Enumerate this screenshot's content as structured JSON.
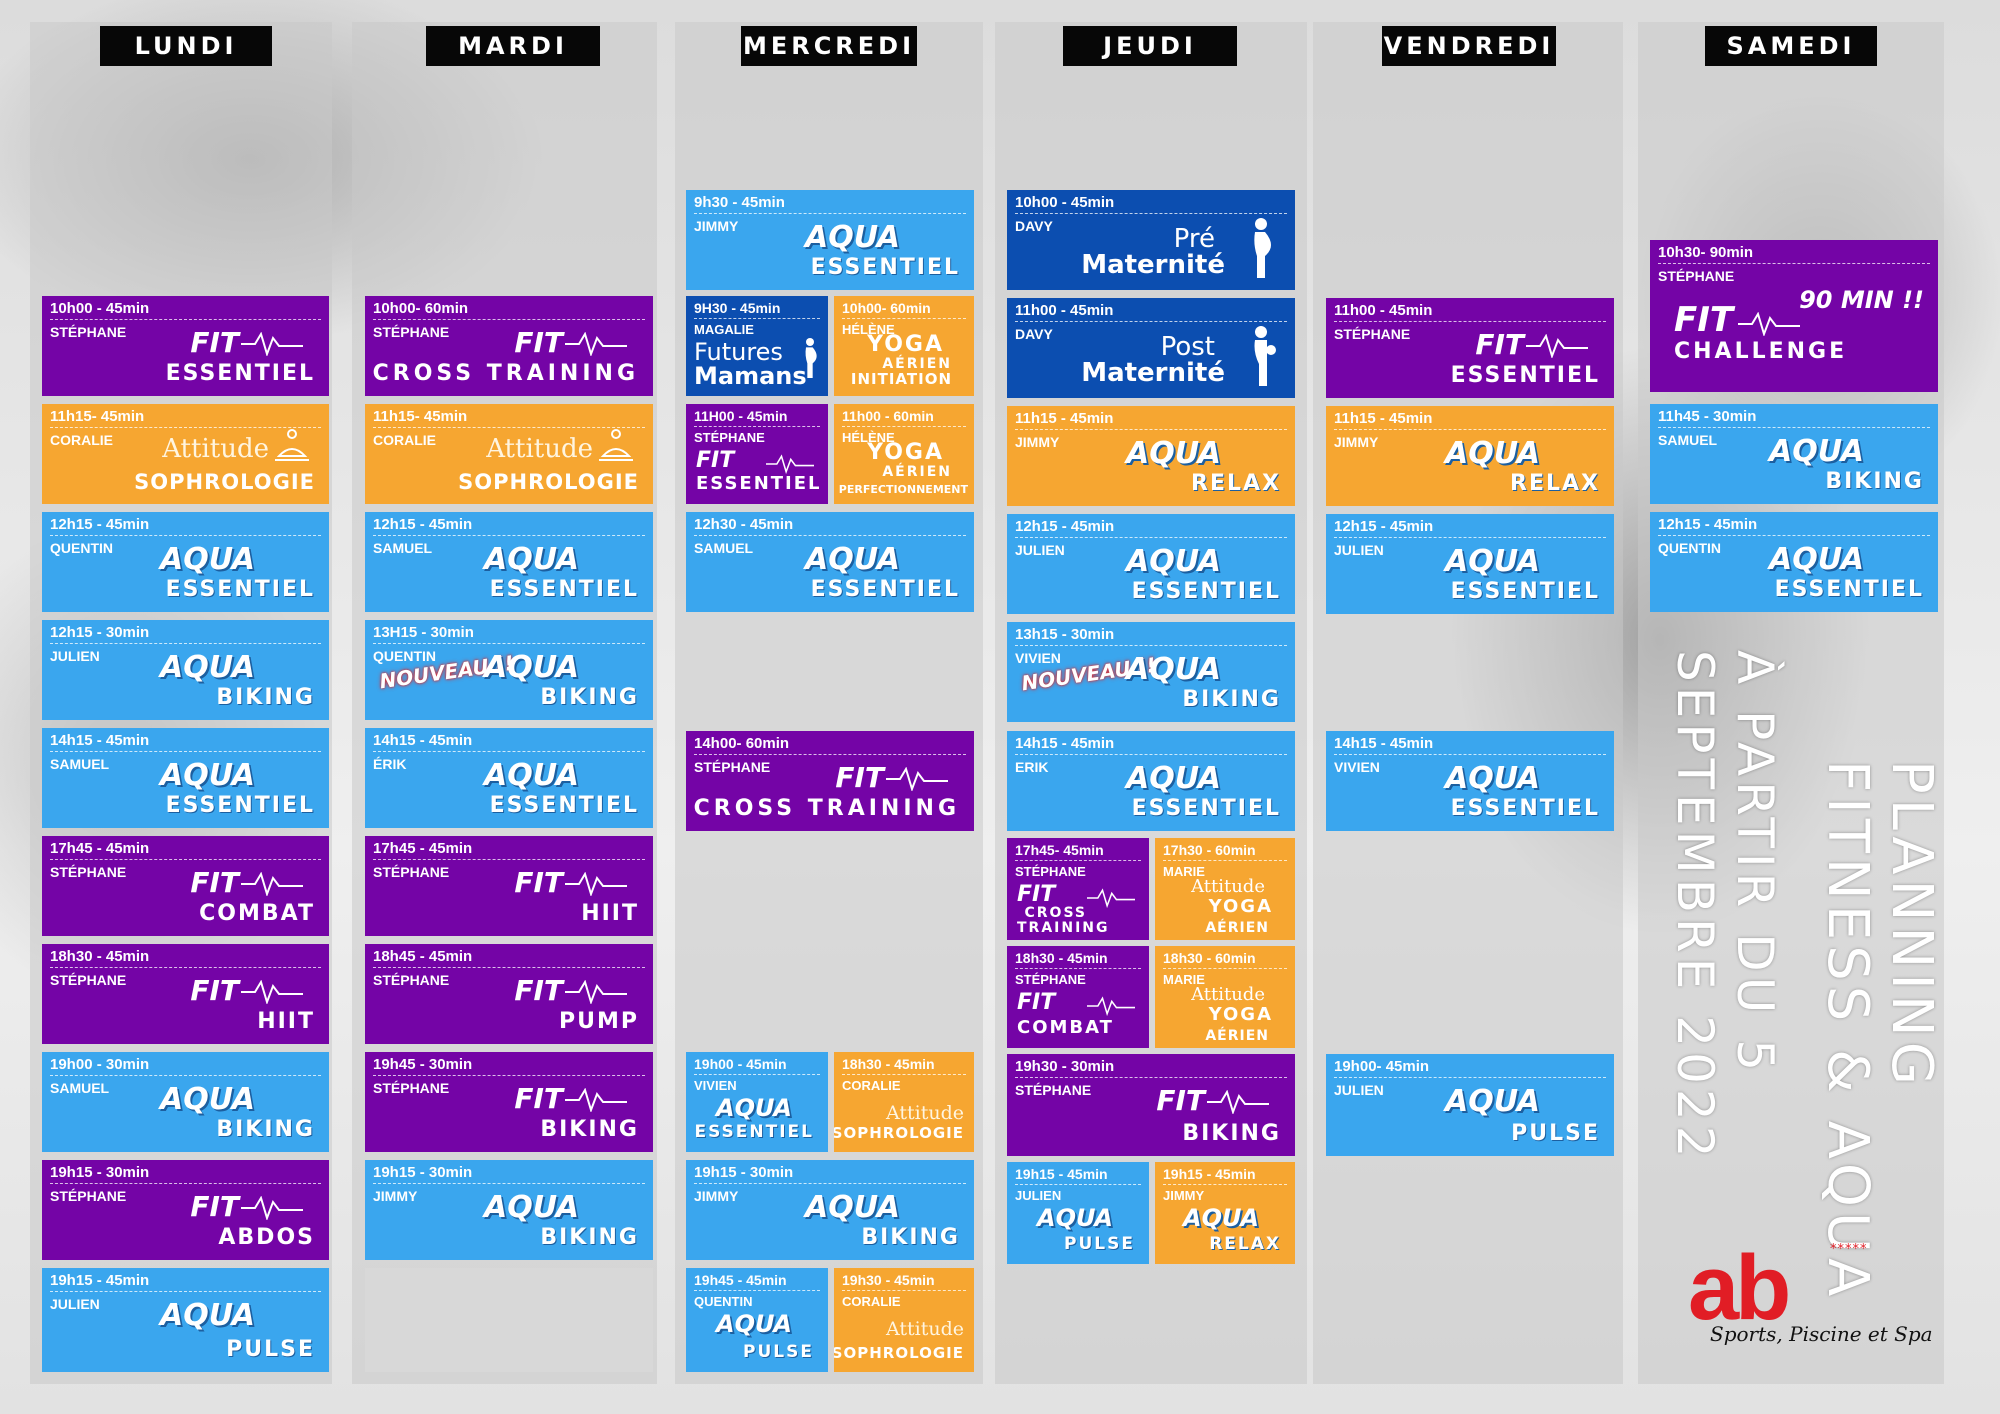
{
  "days": [
    "LUNDI",
    "MARDI",
    "MERCREDI",
    "JEUDI",
    "VENDREDI",
    "SAMEDI"
  ],
  "colors": {
    "aqua": "#3aa6ee",
    "fit": "#7404a6",
    "orange": "#f6a631",
    "navy": "#0c4eb0",
    "header": "#070707",
    "logo": "#e11d25"
  },
  "labels": {
    "nouveau": "NOUVEAU !!",
    "bonus": "90 MIN !!"
  },
  "lundi": [
    {
      "time": "10h00 - 45min",
      "coach": "STÉPHANE",
      "l1": "FIT",
      "l2": "ESSENTIEL"
    },
    {
      "time": "11h15- 45min",
      "coach": "CORALIE",
      "l1": "Attitude",
      "l2": "SOPHROLOGIE"
    },
    {
      "time": "12h15 - 45min",
      "coach": "QUENTIN",
      "l1": "AQUA",
      "l2": "ESSENTIEL"
    },
    {
      "time": "12h15 - 30min",
      "coach": "JULIEN",
      "l1": "AQUA",
      "l2": "BIKING"
    },
    {
      "time": "14h15 - 45min",
      "coach": "SAMUEL",
      "l1": "AQUA",
      "l2": "ESSENTIEL"
    },
    {
      "time": "17h45 - 45min",
      "coach": "STÉPHANE",
      "l1": "FIT",
      "l2": "COMBAT"
    },
    {
      "time": "18h30 - 45min",
      "coach": "STÉPHANE",
      "l1": "FIT",
      "l2": "HIIT"
    },
    {
      "time": "19h00 - 30min",
      "coach": "SAMUEL",
      "l1": "AQUA",
      "l2": "BIKING"
    },
    {
      "time": "19h15 - 30min",
      "coach": "STÉPHANE",
      "l1": "FIT",
      "l2": "ABDOS"
    },
    {
      "time": "19h15 - 45min",
      "coach": "JULIEN",
      "l1": "AQUA",
      "l2": "PULSE"
    }
  ],
  "mardi": [
    {
      "time": "10h00- 60min",
      "coach": "STÉPHANE",
      "l1": "FIT",
      "l2": "CROSS TRAINING"
    },
    {
      "time": "11h15- 45min",
      "coach": "CORALIE",
      "l1": "Attitude",
      "l2": "SOPHROLOGIE"
    },
    {
      "time": "12h15 - 45min",
      "coach": "SAMUEL",
      "l1": "AQUA",
      "l2": "ESSENTIEL"
    },
    {
      "time": "13H15 - 30min",
      "coach": "QUENTIN",
      "l1": "AQUA",
      "l2": "BIKING"
    },
    {
      "time": "14h15 - 45min",
      "coach": "ÉRIK",
      "l1": "AQUA",
      "l2": "ESSENTIEL"
    },
    {
      "time": "17h45 - 45min",
      "coach": "STÉPHANE",
      "l1": "FIT",
      "l2": "HIIT"
    },
    {
      "time": "18h45 - 45min",
      "coach": "STÉPHANE",
      "l1": "FIT",
      "l2": "PUMP"
    },
    {
      "time": "19h45 - 30min",
      "coach": "STÉPHANE",
      "l1": "FIT",
      "l2": "BIKING"
    },
    {
      "time": "19h15 - 30min",
      "coach": "JIMMY",
      "l1": "AQUA",
      "l2": "BIKING"
    }
  ],
  "mercredi": [
    {
      "time": "9h30 - 45min",
      "coach": "JIMMY",
      "l1": "AQUA",
      "l2": "ESSENTIEL"
    },
    {
      "time": "9H30 - 45min",
      "coach": "MAGALIE",
      "l1": "Futures",
      "l2": "Mamans"
    },
    {
      "time": "10h00- 60min",
      "coach": "HÉLÈNE",
      "l1": "YOGA",
      "l1b": "AÉRIEN",
      "l2": "INITIATION"
    },
    {
      "time": "11H00 - 45min",
      "coach": "STÉPHANE",
      "l1": "FIT",
      "l2": "ESSENTIEL"
    },
    {
      "time": "11h00 - 60min",
      "coach": "HÉLÈNE",
      "l1": "YOGA",
      "l1b": "AÉRIEN",
      "l2": "PERFECTIONNEMENT"
    },
    {
      "time": "12h30 - 45min",
      "coach": "SAMUEL",
      "l1": "AQUA",
      "l2": "ESSENTIEL"
    },
    {
      "time": "14h00- 60min",
      "coach": "STÉPHANE",
      "l1": "FIT",
      "l2": "CROSS TRAINING"
    },
    {
      "time": "19h00 - 45min",
      "coach": "VIVIEN",
      "l1": "AQUA",
      "l2": "ESSENTIEL"
    },
    {
      "time": "18h30 - 45min",
      "coach": "CORALIE",
      "l1": "Attitude",
      "l2": "SOPHROLOGIE"
    },
    {
      "time": "19h15 - 30min",
      "coach": "JIMMY",
      "l1": "AQUA",
      "l2": "BIKING"
    },
    {
      "time": "19h45 - 45min",
      "coach": "QUENTIN",
      "l1": "AQUA",
      "l2": "PULSE"
    },
    {
      "time": "19h30 - 45min",
      "coach": "CORALIE",
      "l1": "Attitude",
      "l2": "SOPHROLOGIE"
    }
  ],
  "jeudi": [
    {
      "time": "10h00 - 45min",
      "coach": "DAVY",
      "l1": "Pré",
      "l2": "Maternité"
    },
    {
      "time": "11h00 - 45min",
      "coach": "DAVY",
      "l1": "Post",
      "l2": "Maternité"
    },
    {
      "time": "11h15 - 45min",
      "coach": "JIMMY",
      "l1": "AQUA",
      "l2": "RELAX"
    },
    {
      "time": "12h15 - 45min",
      "coach": "JULIEN",
      "l1": "AQUA",
      "l2": "ESSENTIEL"
    },
    {
      "time": "13h15 - 30min",
      "coach": "VIVIEN",
      "l1": "AQUA",
      "l2": "BIKING"
    },
    {
      "time": "14h15 - 45min",
      "coach": "ERIK",
      "l1": "AQUA",
      "l2": "ESSENTIEL"
    },
    {
      "time": "17h45- 45min",
      "coach": "STÉPHANE",
      "l1": "FIT",
      "l2": "CROSS TRAINING"
    },
    {
      "time": "17h30 - 60min",
      "coach": "MARIE",
      "l1": "Attitude",
      "l1b": "YOGA",
      "l2": "AÉRIEN"
    },
    {
      "time": "18h30 - 45min",
      "coach": "STÉPHANE",
      "l1": "FIT",
      "l2": "COMBAT"
    },
    {
      "time": "18h30 - 60min",
      "coach": "MARIE",
      "l1": "Attitude",
      "l1b": "YOGA",
      "l2": "AÉRIEN"
    },
    {
      "time": "19h30 - 30min",
      "coach": "STÉPHANE",
      "l1": "FIT",
      "l2": "BIKING"
    },
    {
      "time": "19h15 - 45min",
      "coach": "JULIEN",
      "l1": "AQUA",
      "l2": "PULSE"
    },
    {
      "time": "19h15 - 45min",
      "coach": "JIMMY",
      "l1": "AQUA",
      "l2": "RELAX"
    }
  ],
  "vendredi": [
    {
      "time": "11h00 - 45min",
      "coach": "STÉPHANE",
      "l1": "FIT",
      "l2": "ESSENTIEL"
    },
    {
      "time": "11h15 - 45min",
      "coach": "JIMMY",
      "l1": "AQUA",
      "l2": "RELAX"
    },
    {
      "time": "12h15 - 45min",
      "coach": "JULIEN",
      "l1": "AQUA",
      "l2": "ESSENTIEL"
    },
    {
      "time": "14h15 - 45min",
      "coach": "VIVIEN",
      "l1": "AQUA",
      "l2": "ESSENTIEL"
    },
    {
      "time": "19h00- 45min",
      "coach": "JULIEN",
      "l1": "AQUA",
      "l2": "PULSE"
    }
  ],
  "samedi": [
    {
      "time": "10h30- 90min",
      "coach": "STÉPHANE",
      "l1": "FIT",
      "l2": "CHALLENGE"
    },
    {
      "time": "11h45 - 30min",
      "coach": "SAMUEL",
      "l1": "AQUA",
      "l2": "BIKING"
    },
    {
      "time": "12h15 - 45min",
      "coach": "QUENTIN",
      "l1": "AQUA",
      "l2": "ESSENTIEL"
    }
  ],
  "title": {
    "line1": "PLANNING",
    "line2": "FITNESS & AQUA",
    "line3": "À PARTIR DU 5",
    "line4": "SEPTEMBRE 2022"
  },
  "logo": {
    "mark": "ab",
    "stars": "*****",
    "tagline": "Sports, Piscine et Spa"
  }
}
